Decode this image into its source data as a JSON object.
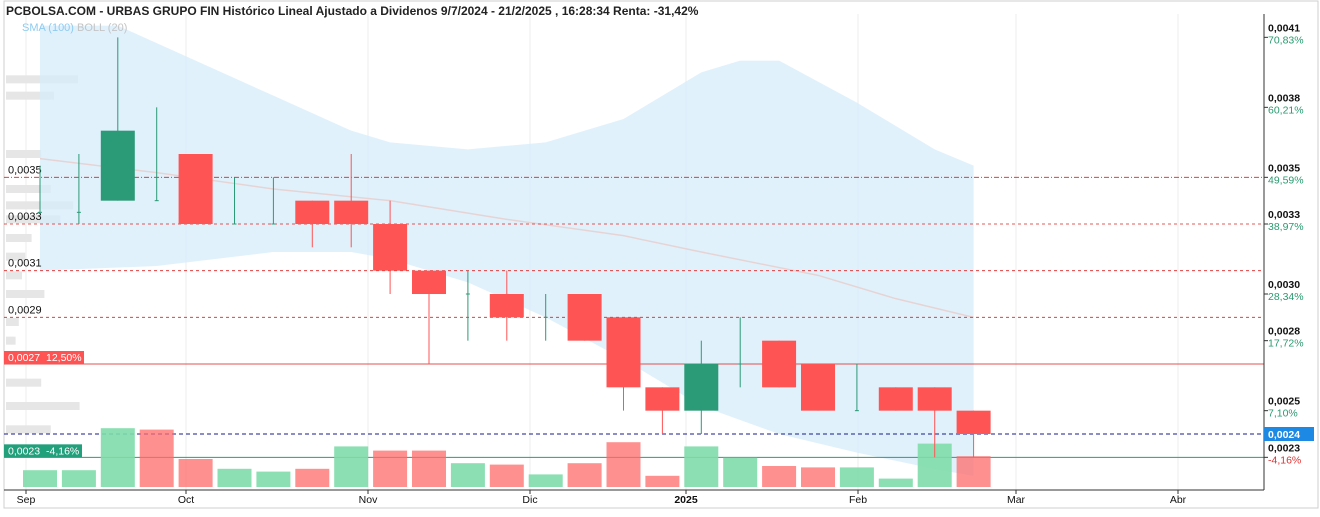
{
  "title": "PCBOLSA.COM - URBAS GRUPO FIN Histórico Lineal Ajustado a Dividenos 9/7/2024 - 21/2/2025 , 16:28:34 Renta: -31,42%",
  "legend": {
    "sma": "SMA (100)",
    "boll": "BOLL (20)"
  },
  "chart_data": {
    "type": "candlestick",
    "ylim": [
      0.00216,
      0.0042
    ],
    "x_axis_ticks": [
      "Sep",
      "Oct",
      "Nov",
      "Dic",
      "2025",
      "Feb",
      "Mar",
      "Abr"
    ],
    "right_axis_ticks": [
      {
        "value": 0.0041,
        "label": "0,0041",
        "pct": "70,83%"
      },
      {
        "value": 0.0038,
        "label": "0,0038",
        "pct": "60,21%"
      },
      {
        "value": 0.0035,
        "label": "0,0035",
        "pct": "49,59%"
      },
      {
        "value": 0.0033,
        "label": "0,0033",
        "pct": "38,97%"
      },
      {
        "value": 0.003,
        "label": "0,0030",
        "pct": "28,34%"
      },
      {
        "value": 0.0028,
        "label": "0,0028",
        "pct": "17,72%"
      },
      {
        "value": 0.0025,
        "label": "0,0025",
        "pct": "7,10%"
      },
      {
        "value": 0.0023,
        "label": "0,0023",
        "pct": "-4,16%"
      }
    ],
    "current_price_label": "0,0024",
    "left_levels": [
      {
        "value": 0.0035,
        "label": "0,0035"
      },
      {
        "value": 0.0033,
        "label": "0,0033"
      },
      {
        "value": 0.0031,
        "label": "0,0031"
      },
      {
        "value": 0.0029,
        "label": "0,0029"
      }
    ],
    "ref_high": {
      "value": 0.0027,
      "label": "0,0027",
      "pct": "12,50%"
    },
    "ref_low": {
      "value": 0.0023,
      "label": "0,0023",
      "pct": "-4,16%"
    },
    "candles": [
      {
        "week": 0,
        "open": 0.00335,
        "high": 0.00355,
        "low": 0.00335,
        "close": 0.00335
      },
      {
        "week": 1,
        "open": 0.00335,
        "high": 0.0036,
        "low": 0.0033,
        "close": 0.00335
      },
      {
        "week": 2,
        "open": 0.0034,
        "high": 0.0041,
        "low": 0.0034,
        "close": 0.0037
      },
      {
        "week": 3,
        "open": 0.0034,
        "high": 0.0038,
        "low": 0.0034,
        "close": 0.0034
      },
      {
        "week": 4,
        "open": 0.0036,
        "high": 0.0036,
        "low": 0.0033,
        "close": 0.0033
      },
      {
        "week": 5,
        "open": 0.0033,
        "high": 0.0035,
        "low": 0.0033,
        "close": 0.0033
      },
      {
        "week": 6,
        "open": 0.0033,
        "high": 0.0035,
        "low": 0.0033,
        "close": 0.0033
      },
      {
        "week": 7,
        "open": 0.0034,
        "high": 0.0034,
        "low": 0.0032,
        "close": 0.0033
      },
      {
        "week": 8,
        "open": 0.0034,
        "high": 0.0036,
        "low": 0.0032,
        "close": 0.0033
      },
      {
        "week": 9,
        "open": 0.0033,
        "high": 0.0034,
        "low": 0.003,
        "close": 0.0031
      },
      {
        "week": 10,
        "open": 0.0031,
        "high": 0.0031,
        "low": 0.0027,
        "close": 0.003
      },
      {
        "week": 11,
        "open": 0.003,
        "high": 0.0031,
        "low": 0.0028,
        "close": 0.003
      },
      {
        "week": 12,
        "open": 0.003,
        "high": 0.0031,
        "low": 0.0028,
        "close": 0.0029
      },
      {
        "week": 13,
        "open": 0.0029,
        "high": 0.003,
        "low": 0.0028,
        "close": 0.0029
      },
      {
        "week": 14,
        "open": 0.003,
        "high": 0.003,
        "low": 0.0028,
        "close": 0.0028
      },
      {
        "week": 15,
        "open": 0.0029,
        "high": 0.0029,
        "low": 0.0025,
        "close": 0.0026
      },
      {
        "week": 16,
        "open": 0.0026,
        "high": 0.0026,
        "low": 0.0024,
        "close": 0.0025
      },
      {
        "week": 17,
        "open": 0.0025,
        "high": 0.0028,
        "low": 0.0024,
        "close": 0.0027
      },
      {
        "week": 18,
        "open": 0.0027,
        "high": 0.0029,
        "low": 0.0026,
        "close": 0.0027
      },
      {
        "week": 19,
        "open": 0.0028,
        "high": 0.0028,
        "low": 0.0026,
        "close": 0.0026
      },
      {
        "week": 20,
        "open": 0.0027,
        "high": 0.0027,
        "low": 0.0025,
        "close": 0.0025
      },
      {
        "week": 21,
        "open": 0.0025,
        "high": 0.0027,
        "low": 0.0025,
        "close": 0.0025
      },
      {
        "week": 22,
        "open": 0.0026,
        "high": 0.0026,
        "low": 0.0025,
        "close": 0.0025
      },
      {
        "week": 23,
        "open": 0.0026,
        "high": 0.0026,
        "low": 0.0023,
        "close": 0.0025
      },
      {
        "week": 24,
        "open": 0.0025,
        "high": 0.0025,
        "low": 0.0023,
        "close": 0.0024
      }
    ],
    "volume": [
      {
        "week": 0,
        "value": 0.24,
        "up": true
      },
      {
        "week": 1,
        "value": 0.24,
        "up": true
      },
      {
        "week": 2,
        "value": 0.84,
        "up": true
      },
      {
        "week": 3,
        "value": 0.82,
        "up": false
      },
      {
        "week": 4,
        "value": 0.4,
        "up": false
      },
      {
        "week": 5,
        "value": 0.26,
        "up": true
      },
      {
        "week": 6,
        "value": 0.22,
        "up": true
      },
      {
        "week": 7,
        "value": 0.26,
        "up": false
      },
      {
        "week": 8,
        "value": 0.58,
        "up": true
      },
      {
        "week": 9,
        "value": 0.52,
        "up": false
      },
      {
        "week": 10,
        "value": 0.52,
        "up": false
      },
      {
        "week": 11,
        "value": 0.34,
        "up": true
      },
      {
        "week": 12,
        "value": 0.32,
        "up": false
      },
      {
        "week": 13,
        "value": 0.18,
        "up": true
      },
      {
        "week": 14,
        "value": 0.34,
        "up": false
      },
      {
        "week": 15,
        "value": 0.64,
        "up": false
      },
      {
        "week": 16,
        "value": 0.16,
        "up": false
      },
      {
        "week": 17,
        "value": 0.58,
        "up": true
      },
      {
        "week": 18,
        "value": 0.42,
        "up": true
      },
      {
        "week": 19,
        "value": 0.3,
        "up": false
      },
      {
        "week": 20,
        "value": 0.28,
        "up": false
      },
      {
        "week": 21,
        "value": 0.28,
        "up": true
      },
      {
        "week": 22,
        "value": 0.12,
        "up": true
      },
      {
        "week": 23,
        "value": 0.62,
        "up": true
      },
      {
        "week": 24,
        "value": 0.44,
        "up": false
      }
    ],
    "boll_upper": [
      {
        "week": 0,
        "value": 0.00415
      },
      {
        "week": 2,
        "value": 0.00415
      },
      {
        "week": 4,
        "value": 0.004
      },
      {
        "week": 6,
        "value": 0.00385
      },
      {
        "week": 8,
        "value": 0.0037
      },
      {
        "week": 9,
        "value": 0.00365
      },
      {
        "week": 11,
        "value": 0.00362
      },
      {
        "week": 13,
        "value": 0.00365
      },
      {
        "week": 15,
        "value": 0.00375
      },
      {
        "week": 17,
        "value": 0.00395
      },
      {
        "week": 18,
        "value": 0.004
      },
      {
        "week": 19,
        "value": 0.004
      },
      {
        "week": 21,
        "value": 0.00382
      },
      {
        "week": 23,
        "value": 0.00362
      },
      {
        "week": 24,
        "value": 0.00355
      }
    ],
    "boll_lower": [
      {
        "week": 0,
        "value": 0.0031
      },
      {
        "week": 3,
        "value": 0.00312
      },
      {
        "week": 6,
        "value": 0.00318
      },
      {
        "week": 8,
        "value": 0.00318
      },
      {
        "week": 9,
        "value": 0.00315
      },
      {
        "week": 11,
        "value": 0.00305
      },
      {
        "week": 13,
        "value": 0.0029
      },
      {
        "week": 15,
        "value": 0.00272
      },
      {
        "week": 17,
        "value": 0.00252
      },
      {
        "week": 19,
        "value": 0.0024
      },
      {
        "week": 21,
        "value": 0.00232
      },
      {
        "week": 23,
        "value": 0.00225
      },
      {
        "week": 24,
        "value": 0.00222
      }
    ],
    "sma_line": [
      {
        "week": 0,
        "value": 0.00358
      },
      {
        "week": 3,
        "value": 0.00352
      },
      {
        "week": 6,
        "value": 0.00345
      },
      {
        "week": 9,
        "value": 0.0034
      },
      {
        "week": 12,
        "value": 0.00332
      },
      {
        "week": 15,
        "value": 0.00325
      },
      {
        "week": 17,
        "value": 0.00318
      },
      {
        "week": 20,
        "value": 0.00308
      },
      {
        "week": 22,
        "value": 0.00298
      },
      {
        "week": 24,
        "value": 0.0029
      }
    ],
    "volume_profile": [
      {
        "value": 0.00392,
        "strength": 0.45
      },
      {
        "value": 0.00385,
        "strength": 0.3
      },
      {
        "value": 0.0036,
        "strength": 0.22
      },
      {
        "value": 0.00345,
        "strength": 0.28
      },
      {
        "value": 0.00338,
        "strength": 0.42
      },
      {
        "value": 0.00332,
        "strength": 0.34
      },
      {
        "value": 0.00324,
        "strength": 0.16
      },
      {
        "value": 0.00316,
        "strength": 0.12
      },
      {
        "value": 0.00308,
        "strength": 0.1
      },
      {
        "value": 0.003,
        "strength": 0.24
      },
      {
        "value": 0.00288,
        "strength": 0.08
      },
      {
        "value": 0.0028,
        "strength": 0.06
      },
      {
        "value": 0.00272,
        "strength": 0.24
      },
      {
        "value": 0.00262,
        "strength": 0.22
      },
      {
        "value": 0.00252,
        "strength": 0.46
      },
      {
        "value": 0.00242,
        "strength": 0.28
      }
    ],
    "grid": true
  }
}
